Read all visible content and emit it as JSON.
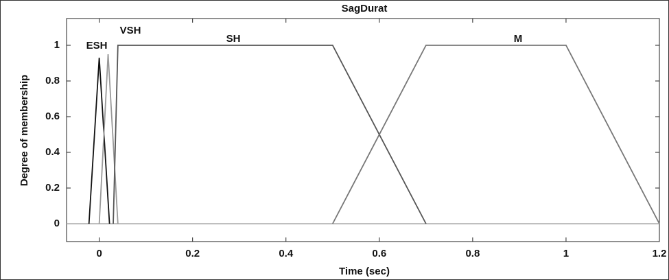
{
  "chart_data": {
    "type": "line",
    "title": "SagDurat",
    "x_label": "Time (sec)",
    "y_label": "Degree of membership",
    "series": [
      {
        "name": "ESH",
        "color": "#111111",
        "x": [
          -0.022,
          0,
          0.022
        ],
        "values": [
          0,
          0.93,
          0
        ]
      },
      {
        "name": "VSH",
        "color": "#999999",
        "x": [
          0,
          0.019,
          0.04
        ],
        "values": [
          0,
          0.95,
          0
        ]
      },
      {
        "name": "SH",
        "color": "#555555",
        "x": [
          0.03,
          0.04,
          0.5,
          0.7
        ],
        "values": [
          0,
          1,
          1,
          0
        ]
      },
      {
        "name": "M",
        "color": "#777777",
        "x": [
          0.5,
          0.7,
          1,
          1.2
        ],
        "values": [
          0,
          1,
          1,
          0
        ]
      }
    ],
    "xlim": [
      -0.07,
      1.2
    ],
    "ylim": [
      -0.1,
      1.15
    ],
    "xticks": [
      0,
      0.2,
      0.4,
      0.6,
      0.8,
      1,
      1.2
    ],
    "yticks": [
      0,
      0.2,
      0.4,
      0.6,
      0.8,
      1
    ]
  }
}
